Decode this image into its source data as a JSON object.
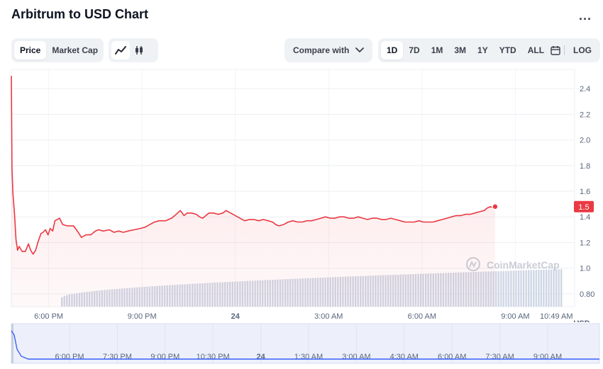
{
  "header": {
    "title": "Arbitrum to USD Chart",
    "more": "..."
  },
  "toolbar": {
    "metrics": [
      {
        "label": "Price",
        "active": true
      },
      {
        "label": "Market Cap",
        "active": false
      }
    ],
    "chart_types": [
      {
        "icon": "line-chart-icon",
        "active": true
      },
      {
        "icon": "candlestick-icon",
        "active": false
      }
    ],
    "compare_label": "Compare with",
    "ranges": [
      {
        "label": "1D",
        "active": true
      },
      {
        "label": "7D"
      },
      {
        "label": "1M"
      },
      {
        "label": "3M"
      },
      {
        "label": "1Y"
      },
      {
        "label": "YTD"
      },
      {
        "label": "ALL"
      }
    ],
    "log_label": "LOG"
  },
  "colors": {
    "line": "#ea3943",
    "volume": "#cfd6e4",
    "navigator_line": "#3861fb",
    "navigator_bg": "#edf0fb",
    "price_tag": "#ea3943"
  },
  "chart_data": {
    "type": "line",
    "title": "Arbitrum to USD Chart",
    "ylabel": "USD",
    "ylim": [
      0.7,
      2.55
    ],
    "y_ticks": [
      "2.4",
      "2.2",
      "2.0",
      "1.8",
      "1.6",
      "1.4",
      "1.2",
      "1.0",
      "0.80"
    ],
    "y_tick_values": [
      2.4,
      2.2,
      2.0,
      1.8,
      1.6,
      1.4,
      1.2,
      1.0,
      0.8
    ],
    "current_price_label": "1.5",
    "current_price": 1.48,
    "x_ticks": [
      {
        "label": "6:00 PM",
        "t": 0.5,
        "bold": false
      },
      {
        "label": "9:00 PM",
        "t": 3.5,
        "bold": false
      },
      {
        "label": "24",
        "t": 6.5,
        "bold": true
      },
      {
        "label": "3:00 AM",
        "t": 9.5,
        "bold": false
      },
      {
        "label": "6:00 AM",
        "t": 12.5,
        "bold": false
      },
      {
        "label": "9:00 AM",
        "t": 15.5,
        "bold": false
      },
      {
        "label": "10:49 AM",
        "t": 16.82,
        "bold": false
      }
    ],
    "series": [
      {
        "points": [
          [
            -0.7,
            2.5
          ],
          [
            -0.68,
            1.78
          ],
          [
            -0.65,
            1.58
          ],
          [
            -0.6,
            1.43
          ],
          [
            -0.55,
            1.22
          ],
          [
            -0.5,
            1.14
          ],
          [
            -0.45,
            1.17
          ],
          [
            -0.35,
            1.13
          ],
          [
            -0.25,
            1.13
          ],
          [
            -0.15,
            1.19
          ],
          [
            -0.08,
            1.14
          ],
          [
            0.0,
            1.11
          ],
          [
            0.08,
            1.14
          ],
          [
            0.15,
            1.2
          ],
          [
            0.25,
            1.27
          ],
          [
            0.32,
            1.28
          ],
          [
            0.4,
            1.3
          ],
          [
            0.48,
            1.26
          ],
          [
            0.55,
            1.31
          ],
          [
            0.63,
            1.29
          ],
          [
            0.7,
            1.37
          ],
          [
            0.85,
            1.39
          ],
          [
            0.95,
            1.34
          ],
          [
            1.1,
            1.33
          ],
          [
            1.3,
            1.33
          ],
          [
            1.45,
            1.28
          ],
          [
            1.55,
            1.24
          ],
          [
            1.7,
            1.26
          ],
          [
            1.85,
            1.26
          ],
          [
            2.0,
            1.29
          ],
          [
            2.1,
            1.3
          ],
          [
            2.25,
            1.29
          ],
          [
            2.45,
            1.3
          ],
          [
            2.6,
            1.28
          ],
          [
            2.75,
            1.29
          ],
          [
            2.9,
            1.28
          ],
          [
            3.05,
            1.29
          ],
          [
            3.25,
            1.3
          ],
          [
            3.45,
            1.31
          ],
          [
            3.6,
            1.32
          ],
          [
            3.75,
            1.34
          ],
          [
            3.9,
            1.36
          ],
          [
            4.05,
            1.37
          ],
          [
            4.25,
            1.37
          ],
          [
            4.45,
            1.39
          ],
          [
            4.6,
            1.42
          ],
          [
            4.73,
            1.45
          ],
          [
            4.85,
            1.41
          ],
          [
            4.95,
            1.43
          ],
          [
            5.1,
            1.43
          ],
          [
            5.25,
            1.42
          ],
          [
            5.35,
            1.4
          ],
          [
            5.45,
            1.39
          ],
          [
            5.55,
            1.41
          ],
          [
            5.65,
            1.43
          ],
          [
            5.8,
            1.43
          ],
          [
            5.95,
            1.42
          ],
          [
            6.1,
            1.43
          ],
          [
            6.2,
            1.45
          ],
          [
            6.35,
            1.43
          ],
          [
            6.5,
            1.41
          ],
          [
            6.65,
            1.39
          ],
          [
            6.8,
            1.37
          ],
          [
            6.95,
            1.38
          ],
          [
            7.1,
            1.38
          ],
          [
            7.25,
            1.37
          ],
          [
            7.4,
            1.38
          ],
          [
            7.55,
            1.37
          ],
          [
            7.7,
            1.36
          ],
          [
            7.8,
            1.34
          ],
          [
            7.9,
            1.33
          ],
          [
            8.05,
            1.34
          ],
          [
            8.2,
            1.36
          ],
          [
            8.35,
            1.37
          ],
          [
            8.5,
            1.36
          ],
          [
            8.65,
            1.36
          ],
          [
            8.8,
            1.37
          ],
          [
            8.95,
            1.37
          ],
          [
            9.1,
            1.38
          ],
          [
            9.25,
            1.39
          ],
          [
            9.4,
            1.4
          ],
          [
            9.55,
            1.39
          ],
          [
            9.7,
            1.39
          ],
          [
            9.85,
            1.4
          ],
          [
            10.0,
            1.4
          ],
          [
            10.15,
            1.39
          ],
          [
            10.3,
            1.39
          ],
          [
            10.45,
            1.4
          ],
          [
            10.6,
            1.39
          ],
          [
            10.75,
            1.38
          ],
          [
            10.9,
            1.39
          ],
          [
            11.05,
            1.39
          ],
          [
            11.2,
            1.38
          ],
          [
            11.35,
            1.38
          ],
          [
            11.5,
            1.39
          ],
          [
            11.65,
            1.38
          ],
          [
            11.8,
            1.37
          ],
          [
            11.95,
            1.36
          ],
          [
            12.1,
            1.36
          ],
          [
            12.25,
            1.36
          ],
          [
            12.4,
            1.37
          ],
          [
            12.55,
            1.36
          ],
          [
            12.7,
            1.36
          ],
          [
            12.85,
            1.36
          ],
          [
            13.0,
            1.37
          ],
          [
            13.15,
            1.38
          ],
          [
            13.3,
            1.39
          ],
          [
            13.45,
            1.4
          ],
          [
            13.6,
            1.41
          ],
          [
            13.75,
            1.41
          ],
          [
            13.9,
            1.42
          ],
          [
            14.05,
            1.42
          ],
          [
            14.2,
            1.43
          ],
          [
            14.35,
            1.44
          ],
          [
            14.5,
            1.45
          ],
          [
            14.6,
            1.47
          ],
          [
            14.7,
            1.48
          ],
          [
            14.78,
            1.47
          ],
          [
            14.85,
            1.48
          ]
        ]
      }
    ],
    "volume": {
      "ylim": [
        0,
        1
      ],
      "start": 0.25,
      "end": 1.0
    },
    "navigator": {
      "x_ticks": [
        "6:00 PM",
        "7:30 PM",
        "9:00 PM",
        "10:30 PM",
        "24",
        "1:30 AM",
        "3:00 AM",
        "4:30 AM",
        "6:00 AM",
        "7:30 AM",
        "9:00 AM"
      ]
    },
    "watermark": "CoinMarketCap"
  }
}
